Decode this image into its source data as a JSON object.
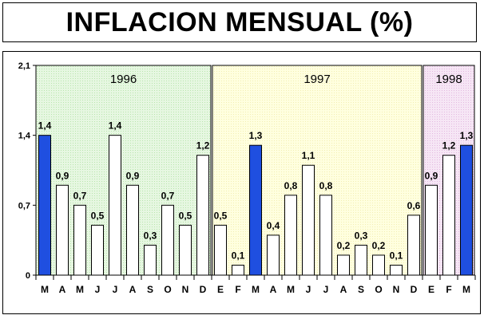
{
  "title": "INFLACION MENSUAL (%)",
  "colors": {
    "panel_1996": "#e6f7e1",
    "panel_1997": "#ffffdf",
    "panel_1998": "#f6e6f5",
    "highlight_bar": "#1f4fe0",
    "normal_bar": "#ffffff"
  },
  "chart_data": {
    "type": "bar",
    "title": "INFLACION MENSUAL (%)",
    "xlabel": "",
    "ylabel": "",
    "ylim": [
      0,
      2.1
    ],
    "yticks": [
      "0",
      "0,7",
      "1,4",
      "2,1"
    ],
    "ytick_values": [
      0,
      0.7,
      1.4,
      2.1
    ],
    "grid": false,
    "periods": [
      {
        "year": "1996",
        "categories": [
          "M",
          "A",
          "M",
          "J",
          "J",
          "A",
          "S",
          "O",
          "N",
          "D"
        ],
        "values": [
          1.4,
          0.9,
          0.7,
          0.5,
          1.4,
          0.9,
          0.3,
          0.7,
          0.5,
          1.2
        ],
        "labels": [
          "1,4",
          "0,9",
          "0,7",
          "0,5",
          "1,4",
          "0,9",
          "0,3",
          "0,7",
          "0,5",
          "1,2"
        ],
        "highlight": [
          true,
          false,
          false,
          false,
          false,
          false,
          false,
          false,
          false,
          false
        ]
      },
      {
        "year": "1997",
        "categories": [
          "E",
          "F",
          "M",
          "A",
          "M",
          "J",
          "J",
          "A",
          "S",
          "O",
          "N",
          "D"
        ],
        "values": [
          0.5,
          0.1,
          1.3,
          0.4,
          0.8,
          1.1,
          0.8,
          0.2,
          0.3,
          0.2,
          0.1,
          0.6
        ],
        "labels": [
          "0,5",
          "0,1",
          "1,3",
          "0,4",
          "0,8",
          "1,1",
          "0,8",
          "0,2",
          "0,3",
          "0,2",
          "0,1",
          "0,6"
        ],
        "highlight": [
          false,
          false,
          true,
          false,
          false,
          false,
          false,
          false,
          false,
          false,
          false,
          false
        ]
      },
      {
        "year": "1998",
        "categories": [
          "E",
          "F",
          "M"
        ],
        "values": [
          0.9,
          1.2,
          1.3
        ],
        "labels": [
          "0,9",
          "1,2",
          "1,3"
        ],
        "highlight": [
          false,
          false,
          true
        ]
      }
    ]
  }
}
